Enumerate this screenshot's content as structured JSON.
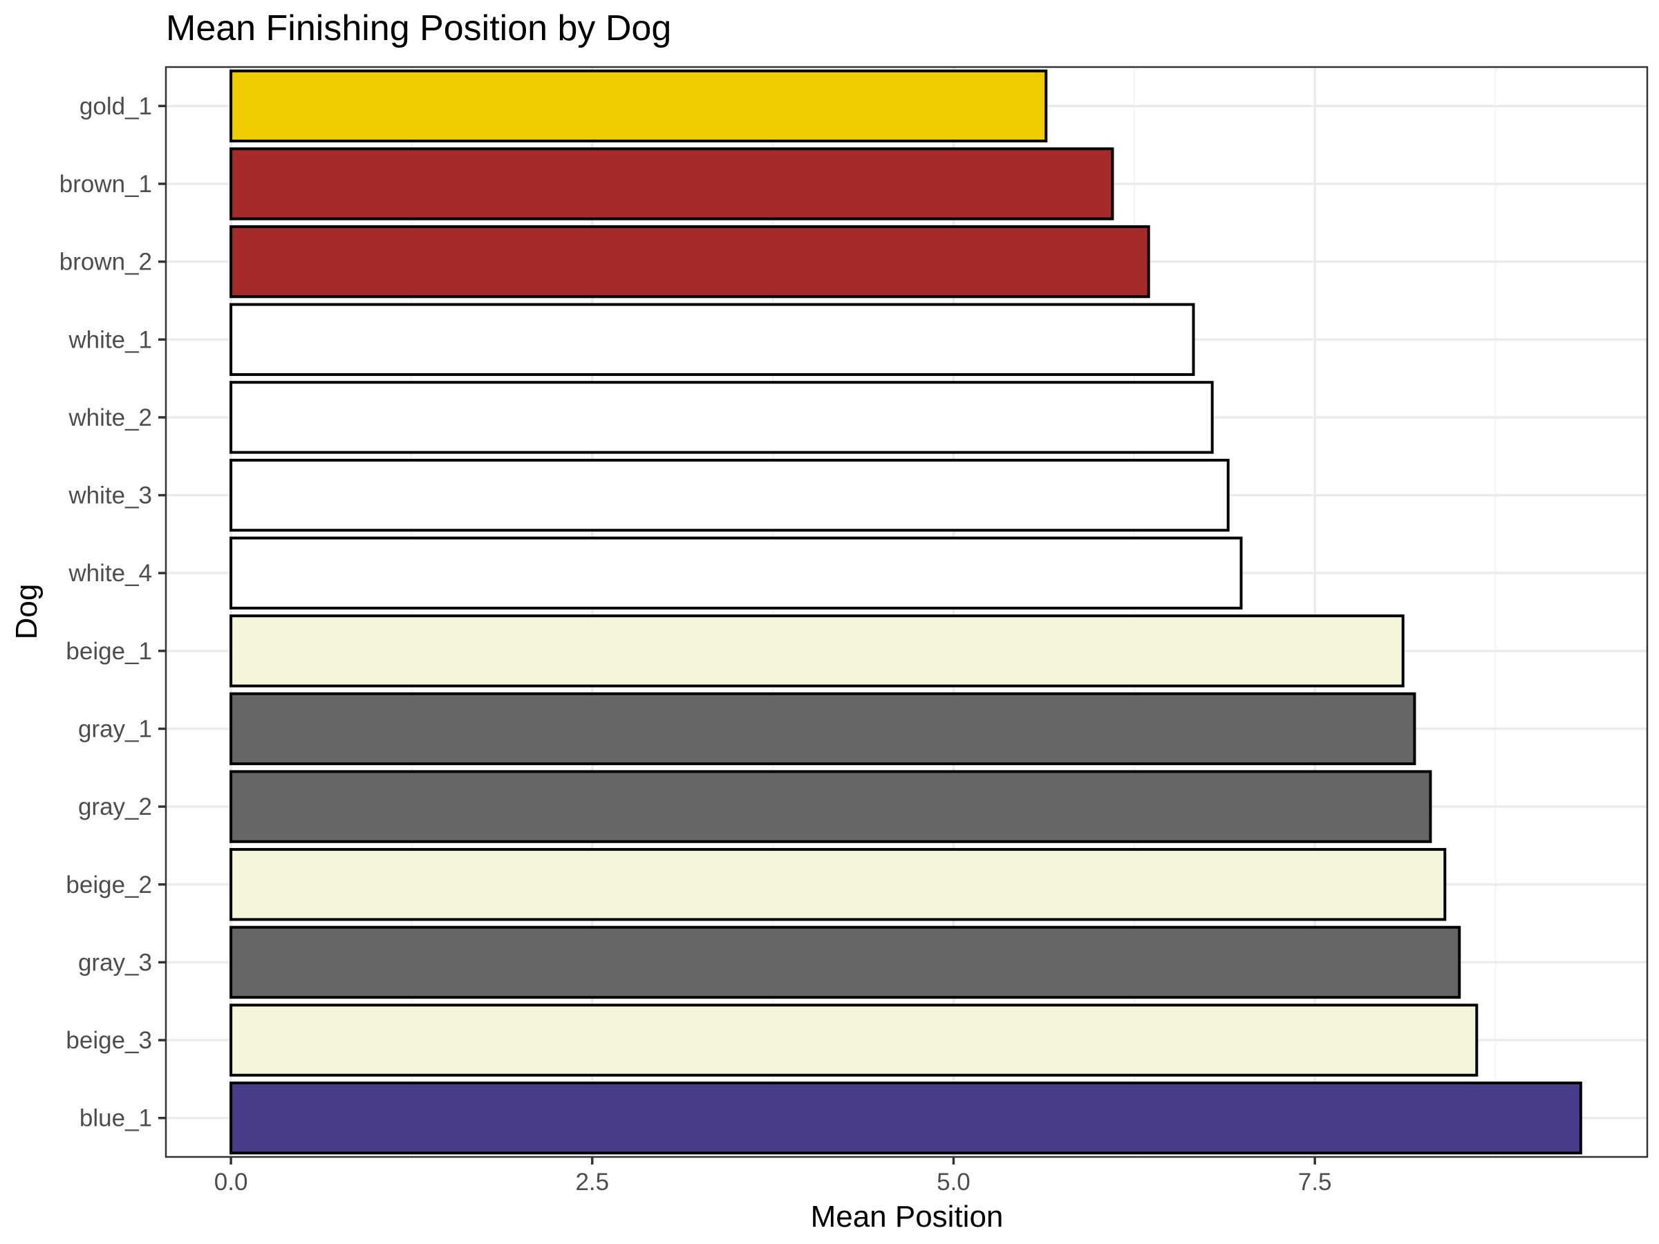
{
  "chart_data": {
    "type": "bar",
    "orientation": "horizontal",
    "title": "Mean Finishing Position by Dog",
    "xlabel": "Mean Position",
    "ylabel": "Dog",
    "xlim": [
      -0.45,
      9.8
    ],
    "x_ticks": [
      0.0,
      2.5,
      5.0,
      7.5
    ],
    "x_tick_labels": [
      "0.0",
      "2.5",
      "5.0",
      "7.5"
    ],
    "x_minor_ticks": [
      1.25,
      3.75,
      6.25,
      8.75
    ],
    "grid": true,
    "legend": "none",
    "bars": [
      {
        "category": "gold_1",
        "value": 5.64,
        "color": "#EECC00"
      },
      {
        "category": "brown_1",
        "value": 6.1,
        "color": "#A52A2A"
      },
      {
        "category": "brown_2",
        "value": 6.35,
        "color": "#A52A2A"
      },
      {
        "category": "white_1",
        "value": 6.66,
        "color": "#FFFFFF"
      },
      {
        "category": "white_2",
        "value": 6.79,
        "color": "#FFFFFF"
      },
      {
        "category": "white_3",
        "value": 6.9,
        "color": "#FFFFFF"
      },
      {
        "category": "white_4",
        "value": 6.99,
        "color": "#FFFFFF"
      },
      {
        "category": "beige_1",
        "value": 8.11,
        "color": "#F5F5DC"
      },
      {
        "category": "gray_1",
        "value": 8.19,
        "color": "#666666"
      },
      {
        "category": "gray_2",
        "value": 8.3,
        "color": "#666666"
      },
      {
        "category": "beige_2",
        "value": 8.4,
        "color": "#F5F5DC"
      },
      {
        "category": "gray_3",
        "value": 8.5,
        "color": "#666666"
      },
      {
        "category": "beige_3",
        "value": 8.62,
        "color": "#F5F5DC"
      },
      {
        "category": "blue_1",
        "value": 9.34,
        "color": "#483D8B"
      }
    ]
  }
}
